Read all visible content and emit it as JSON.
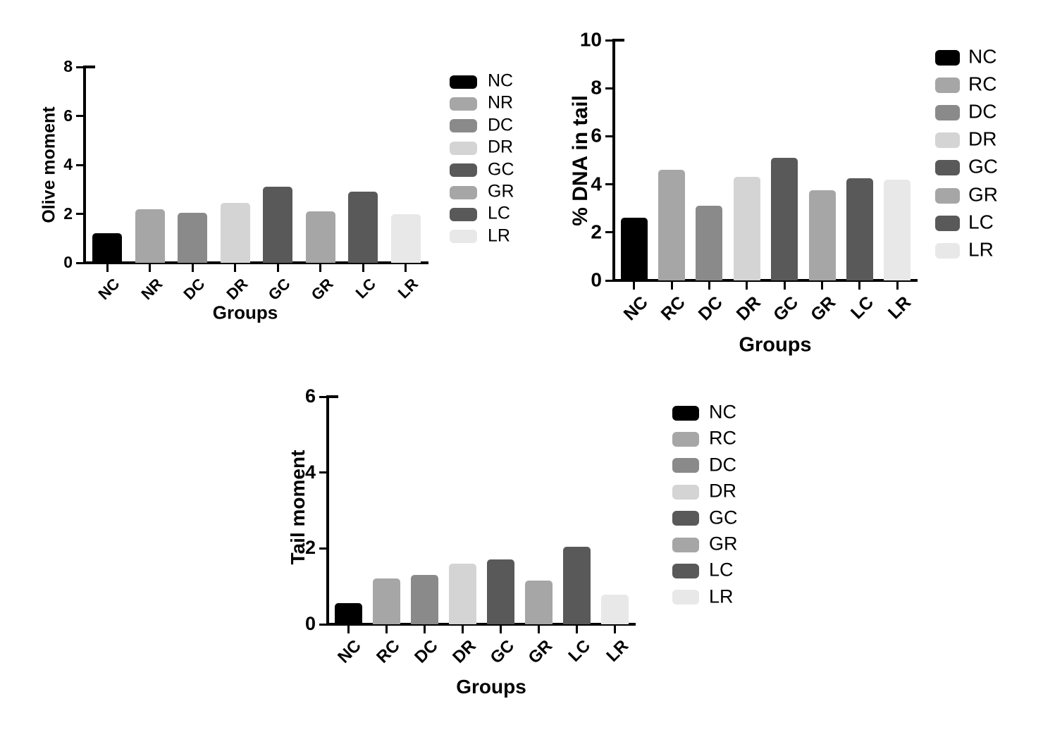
{
  "page": {
    "background": "#ffffff",
    "text_color": "#000000"
  },
  "chart_data": [
    {
      "type": "bar",
      "id": "olive-moment",
      "title": "",
      "ylabel": "Olive moment",
      "xlabel": "Groups",
      "categories": [
        "NC",
        "NR",
        "DC",
        "DR",
        "GC",
        "GR",
        "LC",
        "LR"
      ],
      "values": [
        1.2,
        2.2,
        2.05,
        2.45,
        3.1,
        2.1,
        2.9,
        2.0
      ],
      "ylim": [
        0,
        8
      ],
      "yticks": [
        0,
        2,
        4,
        6,
        8
      ],
      "bar_colors": [
        "#000000",
        "#a6a6a6",
        "#8a8a8a",
        "#d4d4d4",
        "#595959",
        "#a6a6a6",
        "#595959",
        "#e8e8e8"
      ],
      "legend": [
        "NC",
        "NR",
        "DC",
        "DR",
        "GC",
        "GR",
        "LC",
        "LR"
      ],
      "legend_position": "right",
      "grid": false
    },
    {
      "type": "bar",
      "id": "pct-dna-in-tail",
      "title": "",
      "ylabel": "% DNA in tail",
      "xlabel": "Groups",
      "categories": [
        "NC",
        "RC",
        "DC",
        "DR",
        "GC",
        "GR",
        "LC",
        "LR"
      ],
      "values": [
        2.6,
        4.6,
        3.1,
        4.3,
        5.1,
        3.75,
        4.25,
        4.2
      ],
      "ylim": [
        0,
        10
      ],
      "yticks": [
        0,
        2,
        4,
        6,
        8,
        10
      ],
      "bar_colors": [
        "#000000",
        "#a6a6a6",
        "#8a8a8a",
        "#d4d4d4",
        "#595959",
        "#a6a6a6",
        "#595959",
        "#e8e8e8"
      ],
      "legend": [
        "NC",
        "RC",
        "DC",
        "DR",
        "GC",
        "GR",
        "LC",
        "LR"
      ],
      "legend_position": "right",
      "grid": false
    },
    {
      "type": "bar",
      "id": "tail-moment",
      "title": "",
      "ylabel": "Tail moment",
      "xlabel": "Groups",
      "categories": [
        "NC",
        "RC",
        "DC",
        "DR",
        "GC",
        "GR",
        "LC",
        "LR"
      ],
      "values": [
        0.55,
        1.2,
        1.3,
        1.6,
        1.7,
        1.15,
        2.05,
        0.78
      ],
      "ylim": [
        0,
        6
      ],
      "yticks": [
        0,
        2,
        4,
        6
      ],
      "bar_colors": [
        "#000000",
        "#a6a6a6",
        "#8a8a8a",
        "#d4d4d4",
        "#595959",
        "#a6a6a6",
        "#595959",
        "#e8e8e8"
      ],
      "legend": [
        "NC",
        "RC",
        "DC",
        "DR",
        "GC",
        "GR",
        "LC",
        "LR"
      ],
      "legend_position": "right",
      "grid": false
    }
  ]
}
